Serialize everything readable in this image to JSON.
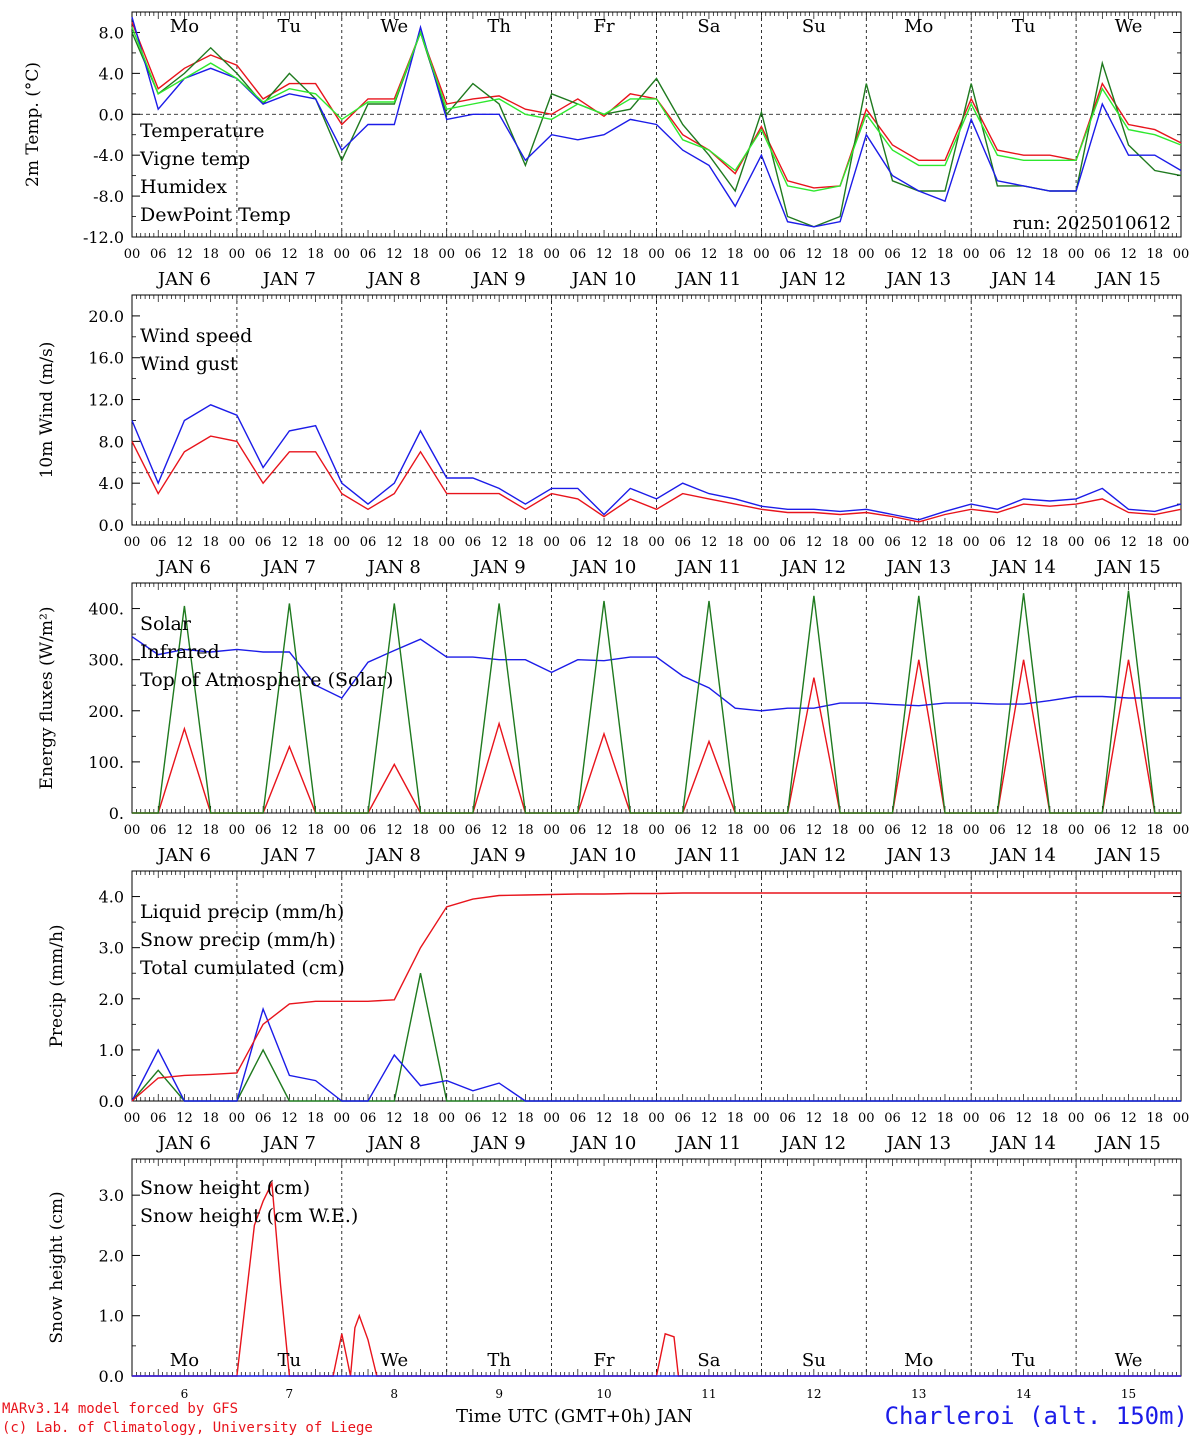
{
  "colors": {
    "red": "#e8141c",
    "green": "#1f7a1f",
    "blue": "#1c1ce8",
    "lightgreen": "#2ee82e",
    "axis": "#000000",
    "weekend": "#e8141c"
  },
  "days": [
    "Mo",
    "Tu",
    "We",
    "Th",
    "Fr",
    "Sa",
    "Su",
    "Mo",
    "Tu",
    "We"
  ],
  "weekend_days": [
    "Sa",
    "Su"
  ],
  "hour_ticks": [
    "00",
    "06",
    "12",
    "18"
  ],
  "date_labels": [
    "JAN  6",
    "JAN  7",
    "JAN  8",
    "JAN  9",
    "JAN 10",
    "JAN 11",
    "JAN 12",
    "JAN 13",
    "JAN 14",
    "JAN 15"
  ],
  "date_numbers": [
    "6",
    "7",
    "8",
    "9",
    "10",
    "11",
    "12",
    "13",
    "14",
    "15"
  ],
  "run_label": "run: 2025010612",
  "footer": {
    "model": "MARv3.14 model forced by GFS",
    "lab": "(c) Lab. of Climatology, University of Liege",
    "xlabel": "Time UTC (GMT+0h) JAN",
    "station": "Charleroi (alt. 150m)"
  },
  "chart_data": [
    {
      "type": "line",
      "ylabel": "2m Temp. (°C)",
      "ylim": [
        -12,
        10
      ],
      "yticks": [
        "-12.0",
        "-8.0",
        "-4.0",
        "0.0",
        "4.0",
        "8.0"
      ],
      "ytick_values": [
        -12,
        -8,
        -4,
        0,
        4,
        8
      ],
      "reference_line": 0,
      "x_hours": [
        0,
        6,
        12,
        18,
        24,
        30,
        36,
        42,
        48,
        54,
        60,
        66,
        72,
        78,
        84,
        90,
        96,
        102,
        108,
        114,
        120,
        126,
        132,
        138,
        144,
        150,
        156,
        162,
        168,
        174,
        180,
        186,
        192,
        198,
        204,
        210,
        216,
        222,
        228,
        234,
        240
      ],
      "series": [
        {
          "name": "Temperature",
          "color": "red",
          "values": [
            9,
            2.5,
            4.5,
            5.8,
            4.8,
            1.5,
            3,
            3,
            -1,
            1.5,
            1.5,
            8,
            1,
            1.5,
            1.8,
            0.5,
            0,
            1.5,
            -0.2,
            2,
            1.5,
            -2,
            -3.5,
            -5.8,
            -1.2,
            -6.5,
            -7.2,
            -7,
            0.5,
            -3,
            -4.5,
            -4.5,
            1.5,
            -3.5,
            -4,
            -4,
            -4.5,
            3,
            -1,
            -1.5,
            -2.8
          ]
        },
        {
          "name": "Vigne temp",
          "color": "green",
          "values": [
            8,
            2,
            4,
            6.5,
            4,
            1,
            4,
            1.5,
            -4.5,
            1,
            1,
            8,
            0,
            3,
            1,
            -5,
            2,
            1,
            0,
            0.5,
            3.5,
            -1,
            -4,
            -7.5,
            0.2,
            -10,
            -11,
            -10,
            3,
            -6.5,
            -7.5,
            -7.5,
            3,
            -7,
            -7,
            -7.5,
            -7.5,
            5,
            -3,
            -5.5,
            -6
          ]
        },
        {
          "name": "Humidex",
          "color": "blue",
          "values": [
            9.5,
            0.5,
            3.5,
            4.5,
            3.5,
            1,
            2,
            1.5,
            -3.5,
            -1,
            -1,
            8.5,
            -0.5,
            0,
            0,
            -4.5,
            -2,
            -2.5,
            -2,
            -0.5,
            -1,
            -3.5,
            -5,
            -9,
            -4,
            -10.5,
            -11,
            -10.5,
            -2,
            -6,
            -7.5,
            -8.5,
            -0.5,
            -6.5,
            -7,
            -7.5,
            -7.5,
            1,
            -4,
            -4,
            -5.5
          ]
        },
        {
          "name": "DewPoint Temp",
          "color": "lightgreen",
          "values": [
            8.5,
            2,
            3.5,
            5,
            3.5,
            1.2,
            2.5,
            2,
            -0.5,
            1.2,
            1.2,
            8,
            0.5,
            1,
            1.5,
            0,
            -0.5,
            1,
            0,
            1.5,
            1.5,
            -2.5,
            -3.5,
            -5.5,
            -1.5,
            -7,
            -7.5,
            -7,
            0,
            -3.5,
            -5,
            -5,
            1,
            -4,
            -4.5,
            -4.5,
            -4.5,
            2.5,
            -1.5,
            -2,
            -3
          ]
        }
      ]
    },
    {
      "type": "line",
      "ylabel": "10m Wind (m/s)",
      "ylim": [
        0,
        22
      ],
      "yticks": [
        "0.0",
        "4.0",
        "8.0",
        "12.0",
        "16.0",
        "20.0"
      ],
      "ytick_values": [
        0,
        4,
        8,
        12,
        16,
        20
      ],
      "reference_line": 5,
      "x_hours": [
        0,
        6,
        12,
        18,
        24,
        30,
        36,
        42,
        48,
        54,
        60,
        66,
        72,
        78,
        84,
        90,
        96,
        102,
        108,
        114,
        120,
        126,
        132,
        138,
        144,
        150,
        156,
        162,
        168,
        174,
        180,
        186,
        192,
        198,
        204,
        210,
        216,
        222,
        228,
        234,
        240
      ],
      "series": [
        {
          "name": "Wind speed",
          "color": "red",
          "values": [
            8,
            3,
            7,
            8.5,
            8,
            4,
            7,
            7,
            3,
            1.5,
            3,
            7,
            3,
            3,
            3,
            1.5,
            3,
            2.5,
            0.8,
            2.5,
            1.5,
            3,
            2.5,
            2,
            1.5,
            1.2,
            1.2,
            1,
            1.2,
            0.8,
            0.3,
            1,
            1.5,
            1.2,
            2,
            1.8,
            2,
            2.5,
            1.2,
            1,
            1.5
          ]
        },
        {
          "name": "Wind gust",
          "color": "blue",
          "values": [
            10,
            4,
            10,
            11.5,
            10.5,
            5.5,
            9,
            9.5,
            4,
            2,
            4,
            9,
            4.5,
            4.5,
            3.5,
            2,
            3.5,
            3.5,
            1,
            3.5,
            2.5,
            4,
            3,
            2.5,
            1.8,
            1.5,
            1.5,
            1.3,
            1.5,
            1,
            0.5,
            1.3,
            2,
            1.5,
            2.5,
            2.3,
            2.5,
            3.5,
            1.5,
            1.3,
            2
          ]
        }
      ]
    },
    {
      "type": "line",
      "ylabel": "Energy fluxes (W/m²)",
      "ylim": [
        0,
        450
      ],
      "yticks": [
        "0.",
        "100.",
        "200.",
        "300.",
        "400."
      ],
      "ytick_values": [
        0,
        100,
        200,
        300,
        400
      ],
      "x_hours": [
        0,
        6,
        12,
        18,
        24,
        30,
        36,
        42,
        48,
        54,
        60,
        66,
        72,
        78,
        84,
        90,
        96,
        102,
        108,
        114,
        120,
        126,
        132,
        138,
        144,
        150,
        156,
        162,
        168,
        174,
        180,
        186,
        192,
        198,
        204,
        210,
        216,
        222,
        228,
        234,
        240
      ],
      "series": [
        {
          "name": "Solar",
          "color": "red",
          "values": [
            0,
            0,
            165,
            0,
            0,
            0,
            130,
            0,
            0,
            0,
            95,
            0,
            0,
            0,
            175,
            0,
            0,
            0,
            155,
            0,
            0,
            0,
            140,
            0,
            0,
            0,
            265,
            0,
            0,
            0,
            300,
            0,
            0,
            0,
            300,
            0,
            0,
            0,
            300,
            0,
            0
          ]
        },
        {
          "name": "Infrared",
          "color": "blue",
          "values": [
            345,
            310,
            320,
            315,
            320,
            315,
            315,
            250,
            225,
            295,
            318,
            340,
            305,
            305,
            300,
            300,
            275,
            300,
            298,
            305,
            305,
            268,
            245,
            205,
            200,
            205,
            205,
            215,
            215,
            212,
            210,
            215,
            215,
            213,
            213,
            220,
            228,
            228,
            225,
            225,
            225
          ]
        },
        {
          "name": "Top of Atmosphere (Solar)",
          "color": "green",
          "values": [
            0,
            0,
            405,
            0,
            0,
            0,
            410,
            0,
            0,
            0,
            410,
            0,
            0,
            0,
            410,
            0,
            0,
            0,
            415,
            0,
            0,
            0,
            415,
            0,
            0,
            0,
            425,
            0,
            0,
            0,
            425,
            0,
            0,
            0,
            430,
            0,
            0,
            0,
            435,
            0,
            0
          ]
        }
      ]
    },
    {
      "type": "line",
      "ylabel": "Precip (mm/h)",
      "ylim": [
        0,
        4.5
      ],
      "yticks": [
        "0.0",
        "1.0",
        "2.0",
        "3.0",
        "4.0"
      ],
      "ytick_values": [
        0,
        1,
        2,
        3,
        4
      ],
      "x_hours": [
        0,
        6,
        12,
        18,
        24,
        30,
        36,
        42,
        48,
        54,
        60,
        66,
        72,
        78,
        84,
        90,
        96,
        102,
        108,
        114,
        120,
        126,
        132,
        138,
        144,
        150,
        156,
        162,
        168,
        174,
        180,
        186,
        192,
        198,
        204,
        210,
        216,
        222,
        228,
        234,
        240
      ],
      "series": [
        {
          "name": "Liquid precip (mm/h)",
          "color": "green",
          "values": [
            0,
            0.6,
            0,
            0,
            0,
            1,
            0,
            0,
            0,
            0,
            0,
            2.5,
            0,
            0,
            0,
            0,
            0,
            0,
            0,
            0,
            0,
            0,
            0,
            0,
            0,
            0,
            0,
            0,
            0,
            0,
            0,
            0,
            0,
            0,
            0,
            0,
            0,
            0,
            0,
            0,
            0
          ]
        },
        {
          "name": "Snow precip (mm/h)",
          "color": "blue",
          "values": [
            0,
            1,
            0,
            0,
            0,
            1.8,
            0.5,
            0.4,
            0,
            0,
            0.9,
            0.3,
            0.4,
            0.2,
            0.35,
            0,
            0,
            0,
            0,
            0,
            0,
            0,
            0,
            0,
            0,
            0,
            0,
            0,
            0,
            0,
            0,
            0,
            0,
            0,
            0,
            0,
            0,
            0,
            0,
            0,
            0
          ]
        },
        {
          "name": "Total cumulated (cm)",
          "color": "red",
          "values": [
            0,
            0.45,
            0.5,
            0.52,
            0.55,
            1.5,
            1.9,
            1.95,
            1.95,
            1.95,
            1.98,
            3,
            3.8,
            3.95,
            4.02,
            4.03,
            4.04,
            4.05,
            4.05,
            4.06,
            4.06,
            4.07,
            4.07,
            4.07,
            4.07,
            4.07,
            4.07,
            4.07,
            4.07,
            4.07,
            4.07,
            4.07,
            4.07,
            4.07,
            4.07,
            4.07,
            4.07,
            4.07,
            4.07,
            4.07,
            4.07
          ]
        }
      ]
    },
    {
      "type": "line",
      "ylabel": "Snow height (cm)",
      "ylim": [
        0,
        3.6
      ],
      "yticks": [
        "0.0",
        "1.0",
        "2.0",
        "3.0"
      ],
      "ytick_values": [
        0,
        1,
        2,
        3
      ],
      "x_hours": [
        0,
        24,
        28,
        30,
        32,
        34,
        36,
        46,
        48,
        50,
        51,
        52,
        54,
        56,
        120,
        122,
        124,
        125,
        240
      ],
      "series": [
        {
          "name": "Snow height (cm)",
          "color": "red",
          "values": [
            0,
            0,
            2.5,
            2.9,
            3.2,
            1.5,
            0,
            0,
            0.7,
            0,
            0.8,
            1,
            0.6,
            0,
            0,
            0.7,
            0.65,
            0,
            0
          ]
        },
        {
          "name": "Snow height (cm W.E.)",
          "color": "blue",
          "values": [
            0,
            0,
            0,
            0,
            0,
            0,
            0,
            0,
            0,
            0,
            0,
            0,
            0,
            0,
            0,
            0,
            0,
            0,
            0
          ]
        }
      ]
    }
  ]
}
